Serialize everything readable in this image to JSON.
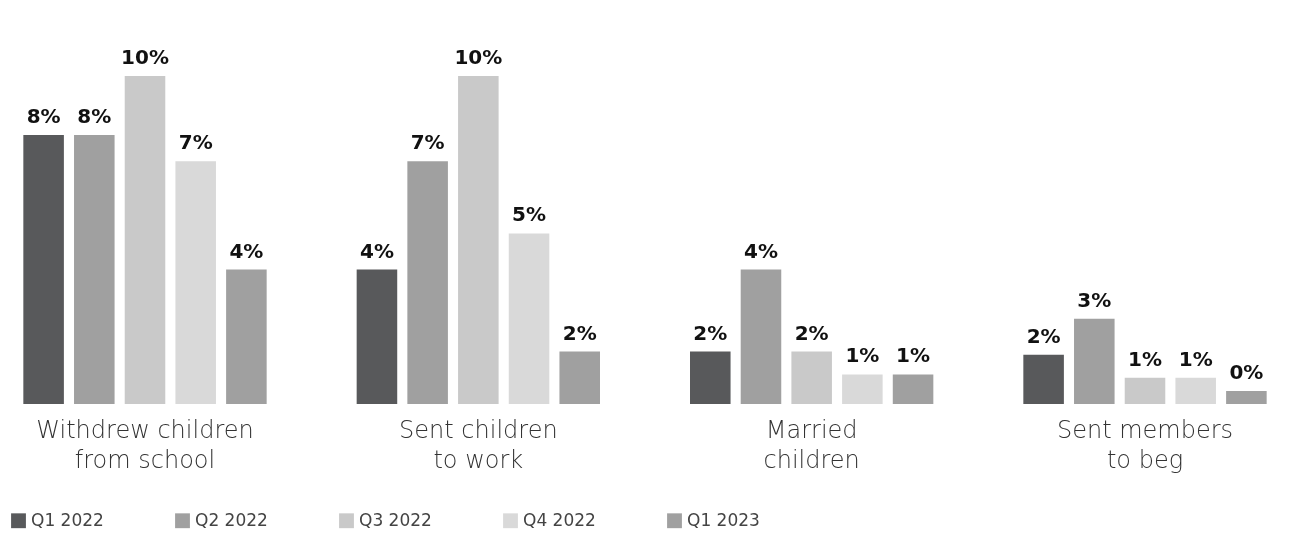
{
  "chart_data": {
    "type": "bar",
    "categories": [
      "Withdrew children from school",
      "Sent children to work",
      "Married children",
      "Sent members to beg"
    ],
    "series": [
      {
        "name": "Q1 2022",
        "color": "#58595b",
        "values": [
          8.2,
          4.1,
          1.6,
          1.5
        ],
        "value_labels": [
          "8%",
          "4%",
          "2%",
          "2%"
        ]
      },
      {
        "name": "Q2 2022",
        "color": "#a0a0a0",
        "values": [
          8.2,
          7.4,
          4.1,
          2.6
        ],
        "value_labels": [
          "8%",
          "7%",
          "4%",
          "3%"
        ]
      },
      {
        "name": "Q3 2022",
        "color": "#c9c9c9",
        "values": [
          10,
          10,
          1.6,
          0.8
        ],
        "value_labels": [
          "10%",
          "10%",
          "2%",
          "1%"
        ]
      },
      {
        "name": "Q4 2022",
        "color": "#d9d9d9",
        "values": [
          7.4,
          5.2,
          0.9,
          0.8
        ],
        "value_labels": [
          "7%",
          "5%",
          "1%",
          "1%"
        ]
      },
      {
        "name": "Q1 2023",
        "color": "#a0a0a0",
        "values": [
          4.1,
          1.6,
          0.9,
          0.4
        ],
        "value_labels": [
          "4%",
          "2%",
          "1%",
          "0%"
        ]
      }
    ],
    "legend": "bottom",
    "grid": false
  }
}
